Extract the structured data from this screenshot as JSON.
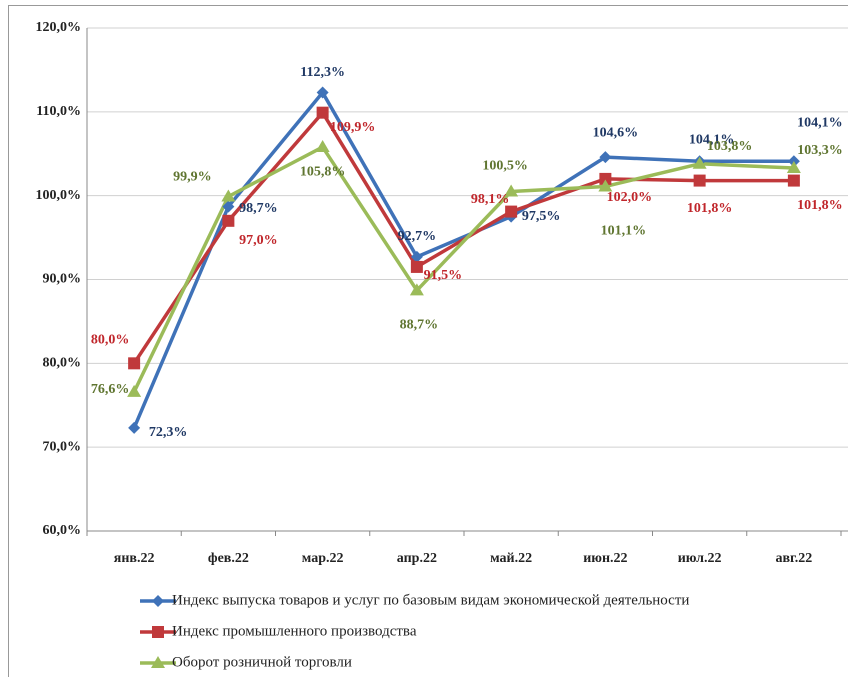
{
  "chart_data": {
    "type": "line",
    "categories": [
      "янв.22",
      "фев.22",
      "мар.22",
      "апр.22",
      "май.22",
      "июн.22",
      "июл.22",
      "авг.22"
    ],
    "ylim": [
      60,
      120
    ],
    "yticks": [
      {
        "value": 60,
        "label": "60,0%"
      },
      {
        "value": 70,
        "label": "70,0%"
      },
      {
        "value": 80,
        "label": "80,0%"
      },
      {
        "value": 90,
        "label": "90,0%"
      },
      {
        "value": 100,
        "label": "100,0%"
      },
      {
        "value": 110,
        "label": "110,0%"
      },
      {
        "value": 120,
        "label": "120,0%"
      }
    ],
    "grid": true,
    "legend": "bottom",
    "series": [
      {
        "name": "Индекс выпуска товаров и услуг по базовым видам экономической деятельности",
        "color": "#3f72b8",
        "label_color": "#1f3864",
        "marker": "diamond",
        "values": [
          72.3,
          98.7,
          112.3,
          92.7,
          97.5,
          104.6,
          104.1,
          104.1
        ],
        "value_labels": [
          "72,3%",
          "98,7%",
          "112,3%",
          "92,7%",
          "97,5%",
          "104,6%",
          "104,1%",
          "104,1%"
        ]
      },
      {
        "name": "Индекс промышленного производства",
        "color": "#c0393b",
        "label_color": "#c0262b",
        "marker": "square",
        "values": [
          80.0,
          97.0,
          109.9,
          91.5,
          98.1,
          102.0,
          101.8,
          101.8
        ],
        "value_labels": [
          "80,0%",
          "97,0%",
          "109,9%",
          "91,5%",
          "98,1%",
          "102,0%",
          "101,8%",
          "101,8%"
        ]
      },
      {
        "name": "Оборот розничной торговли",
        "color": "#9bbb59",
        "label_color": "#5f7530",
        "marker": "triangle",
        "values": [
          76.6,
          99.9,
          105.8,
          88.7,
          100.5,
          101.1,
          103.8,
          103.3
        ],
        "value_labels": [
          "76,6%",
          "99,9%",
          "105,8%",
          "88,7%",
          "100,5%",
          "101,1%",
          "103,8%",
          "103,3%"
        ]
      }
    ]
  }
}
